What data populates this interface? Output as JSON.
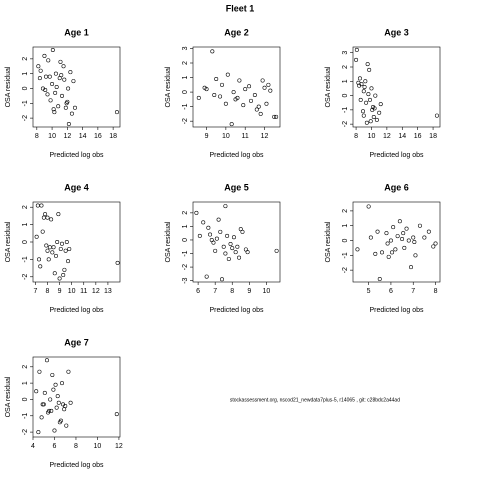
{
  "title": "Fleet 1",
  "footnote": "stockassessment.org, nscod21_newdata7plus-5, r14065 , git: c28bdc2a44ad",
  "chart_data": [
    {
      "type": "scatter",
      "title": "Age 1",
      "xlabel": "Predicted log obs",
      "ylabel": "OSA residual",
      "x": [
        8.2,
        8.5,
        8.8,
        9.0,
        9.2,
        9.4,
        9.5,
        9.8,
        10.0,
        10.1,
        10.3,
        10.5,
        10.6,
        10.8,
        11.0,
        11.1,
        11.3,
        11.5,
        11.6,
        11.8,
        12.0,
        12.2,
        12.4,
        12.6,
        12.8,
        13.0,
        9.1,
        10.2,
        11.2,
        11.9,
        8.4,
        9.7,
        10.4,
        12.1,
        18.5
      ],
      "values": [
        1.5,
        1.2,
        0.0,
        2.2,
        0.8,
        -0.4,
        1.9,
        -0.8,
        0.3,
        2.6,
        -1.6,
        1.0,
        0.1,
        -1.2,
        0.7,
        1.8,
        -0.5,
        1.5,
        0.6,
        -1.3,
        -0.9,
        -2.4,
        1.1,
        -1.7,
        0.5,
        -1.3,
        -0.1,
        -1.4,
        0.9,
        -1.0,
        0.7,
        0.8,
        -0.3,
        0.0,
        -1.6
      ],
      "xlim": [
        7.5,
        18.9
      ],
      "ylim": [
        -2.6,
        2.8
      ],
      "xticks": [
        8,
        10,
        12,
        14,
        16,
        18
      ],
      "yticks": [
        -2,
        -1,
        0,
        1,
        2
      ]
    },
    {
      "type": "scatter",
      "title": "Age 2",
      "xlabel": "Predicted log obs",
      "ylabel": "OSA residual",
      "x": [
        8.6,
        8.9,
        9.0,
        9.3,
        9.5,
        9.7,
        9.8,
        10.0,
        10.1,
        10.3,
        10.4,
        10.6,
        10.7,
        10.9,
        11.0,
        11.2,
        11.3,
        11.5,
        11.7,
        11.8,
        11.9,
        12.0,
        12.1,
        12.3,
        12.5,
        12.6,
        9.4,
        10.5,
        11.6,
        12.2
      ],
      "values": [
        -0.4,
        0.3,
        0.2,
        2.8,
        0.9,
        -0.3,
        0.5,
        -0.8,
        1.2,
        -2.2,
        0.0,
        -0.4,
        0.8,
        -0.9,
        0.2,
        0.4,
        -0.6,
        -0.2,
        -1.0,
        -1.5,
        0.8,
        0.3,
        -0.8,
        0.1,
        -1.7,
        -1.7,
        -0.2,
        -0.5,
        -1.2,
        0.5
      ],
      "xlim": [
        8.3,
        12.8
      ],
      "ylim": [
        -2.4,
        3.1
      ],
      "xticks": [
        9,
        10,
        11,
        12
      ],
      "yticks": [
        -2,
        -1,
        0,
        1,
        2,
        3
      ]
    },
    {
      "type": "scatter",
      "title": "Age 3",
      "xlabel": "Predicted log obs",
      "ylabel": "OSA residual",
      "x": [
        8.0,
        8.1,
        8.3,
        8.5,
        8.7,
        8.9,
        9.0,
        9.2,
        9.3,
        9.5,
        9.6,
        9.8,
        9.9,
        10.0,
        10.2,
        10.3,
        10.5,
        10.7,
        11.0,
        11.2,
        8.6,
        9.1,
        9.4,
        9.7,
        10.1,
        10.4,
        8.4,
        9.0,
        18.5
      ],
      "values": [
        2.5,
        3.2,
        0.9,
        1.2,
        0.8,
        -1.1,
        0.3,
        1.0,
        -0.5,
        2.2,
        0.1,
        -0.3,
        -1.8,
        0.5,
        -0.8,
        -1.5,
        0.0,
        -1.7,
        -1.2,
        -0.6,
        -0.3,
        0.6,
        -1.9,
        1.8,
        -1.0,
        -0.9,
        0.7,
        -1.4,
        -1.4
      ],
      "xlim": [
        7.6,
        18.9
      ],
      "ylim": [
        -2.2,
        3.4
      ],
      "xticks": [
        8,
        10,
        12,
        14,
        16,
        18
      ],
      "yticks": [
        -2,
        -1,
        0,
        1,
        2,
        3
      ]
    },
    {
      "type": "scatter",
      "title": "Age 4",
      "xlabel": "Predicted log obs",
      "ylabel": "OSA residual",
      "x": [
        7.1,
        7.2,
        7.4,
        7.5,
        7.6,
        7.8,
        7.9,
        8.0,
        8.1,
        8.3,
        8.4,
        8.5,
        8.6,
        8.8,
        8.9,
        9.0,
        9.1,
        9.2,
        9.4,
        9.5,
        9.6,
        9.7,
        7.7,
        8.2,
        8.7,
        9.3,
        7.3,
        8.0,
        9.8,
        13.8
      ],
      "values": [
        0.3,
        2.1,
        -1.4,
        2.1,
        0.6,
        1.6,
        -0.2,
        1.4,
        -1.0,
        1.3,
        -0.6,
        -0.3,
        -1.8,
        0.0,
        1.6,
        -2.1,
        -0.4,
        -0.1,
        -1.6,
        -0.5,
        0.0,
        -1.1,
        1.4,
        -0.3,
        -0.8,
        -1.9,
        -1.0,
        -0.5,
        -0.4,
        -1.2
      ],
      "xlim": [
        6.8,
        14.0
      ],
      "ylim": [
        -2.3,
        2.3
      ],
      "xticks": [
        7,
        8,
        9,
        10,
        11,
        12,
        13
      ],
      "yticks": [
        -2,
        -1,
        0,
        1,
        2
      ]
    },
    {
      "type": "scatter",
      "title": "Age 5",
      "xlabel": "Predicted log obs",
      "ylabel": "OSA residual",
      "x": [
        5.9,
        6.1,
        6.3,
        6.5,
        6.6,
        6.8,
        6.9,
        7.0,
        7.2,
        7.3,
        7.5,
        7.6,
        7.7,
        7.8,
        8.0,
        8.1,
        8.2,
        8.4,
        8.5,
        8.6,
        8.8,
        8.9,
        7.1,
        7.4,
        7.9,
        8.3,
        6.7,
        7.6,
        10.6
      ],
      "values": [
        2.0,
        0.3,
        1.3,
        -2.7,
        0.9,
        0.0,
        -0.2,
        -0.8,
        1.5,
        0.6,
        -0.5,
        2.5,
        0.3,
        -1.4,
        -0.6,
        0.2,
        -0.9,
        -1.3,
        0.8,
        0.6,
        -0.7,
        -0.9,
        0.1,
        -2.9,
        -0.3,
        -0.5,
        0.4,
        -1.0,
        -0.8
      ],
      "xlim": [
        5.7,
        10.8
      ],
      "ylim": [
        -3.1,
        2.8
      ],
      "xticks": [
        6,
        7,
        8,
        9,
        10
      ],
      "yticks": [
        -3,
        -2,
        -1,
        0,
        1,
        2
      ]
    },
    {
      "type": "scatter",
      "title": "Age 6",
      "xlabel": "Predicted log obs",
      "ylabel": "OSA residual",
      "x": [
        4.5,
        5.0,
        5.1,
        5.3,
        5.5,
        5.6,
        5.8,
        5.9,
        6.0,
        6.1,
        6.2,
        6.3,
        6.4,
        6.5,
        6.6,
        6.7,
        6.8,
        6.9,
        7.0,
        7.1,
        7.3,
        7.5,
        7.7,
        7.9,
        8.0,
        5.4,
        6.05,
        6.55,
        7.05,
        5.85
      ],
      "values": [
        -0.6,
        2.3,
        0.2,
        -0.9,
        -2.6,
        -0.8,
        0.5,
        -1.1,
        0.0,
        0.9,
        -0.6,
        0.3,
        1.3,
        0.1,
        -0.5,
        0.8,
        0.0,
        -1.8,
        0.2,
        -1.0,
        1.0,
        0.2,
        0.6,
        -0.4,
        -0.2,
        0.6,
        -0.8,
        0.5,
        -0.1,
        -0.2
      ],
      "xlim": [
        4.3,
        8.2
      ],
      "ylim": [
        -2.8,
        2.6
      ],
      "xticks": [
        5,
        6,
        7,
        8
      ],
      "yticks": [
        -2,
        -1,
        0,
        1,
        2
      ]
    },
    {
      "type": "scatter",
      "title": "Age 7",
      "xlabel": "Predicted log obs",
      "ylabel": "OSA residual",
      "x": [
        4.3,
        4.6,
        4.8,
        5.0,
        5.1,
        5.3,
        5.5,
        5.6,
        5.8,
        6.0,
        6.1,
        6.3,
        6.4,
        6.5,
        6.7,
        6.9,
        7.1,
        7.3,
        7.5,
        4.9,
        5.4,
        5.9,
        6.2,
        6.6,
        7.0,
        4.5,
        5.7,
        6.8,
        11.8
      ],
      "values": [
        0.5,
        1.7,
        -1.1,
        -0.3,
        0.4,
        2.4,
        -0.7,
        0.0,
        1.5,
        -1.9,
        0.9,
        0.2,
        -0.2,
        -1.4,
        1.0,
        -0.6,
        -1.6,
        1.7,
        -0.2,
        -0.3,
        -0.8,
        0.6,
        -0.5,
        -1.3,
        -0.4,
        -2.0,
        -0.7,
        -0.3,
        -0.9
      ],
      "xlim": [
        4.0,
        12.1
      ],
      "ylim": [
        -2.3,
        2.6
      ],
      "xticks": [
        4,
        6,
        8,
        10,
        12
      ],
      "yticks": [
        -2,
        -1,
        0,
        1,
        2
      ]
    }
  ]
}
